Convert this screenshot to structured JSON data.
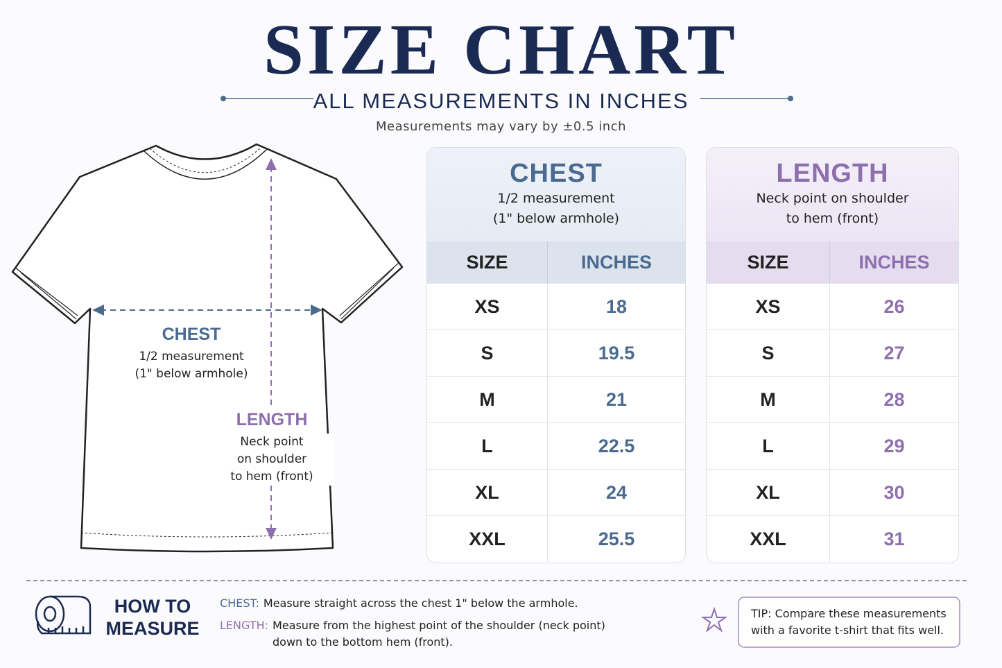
{
  "header": {
    "title": "SIZE CHART",
    "subtitle": "ALL MEASUREMENTS IN INCHES",
    "note": "Measurements may vary by ±0.5 inch"
  },
  "diagram": {
    "chest": {
      "label": "CHEST",
      "lines": [
        "1/2 measurement",
        "(1\" below armhole)"
      ]
    },
    "length": {
      "label": "LENGTH",
      "lines": [
        "Neck point",
        "on shoulder",
        "to hem (front)"
      ]
    }
  },
  "tables": [
    {
      "title": "CHEST",
      "description": [
        "1/2 measurement",
        "(1\" below armhole)"
      ],
      "columns": [
        "SIZE",
        "INCHES"
      ],
      "rows": [
        [
          "XS",
          "18"
        ],
        [
          "S",
          "19.5"
        ],
        [
          "M",
          "21"
        ],
        [
          "L",
          "22.5"
        ],
        [
          "XL",
          "24"
        ],
        [
          "XXL",
          "25.5"
        ]
      ]
    },
    {
      "title": "LENGTH",
      "description": [
        "Neck point on shoulder",
        "to hem (front)"
      ],
      "columns": [
        "SIZE",
        "INCHES"
      ],
      "rows": [
        [
          "XS",
          "26"
        ],
        [
          "S",
          "27"
        ],
        [
          "M",
          "28"
        ],
        [
          "L",
          "29"
        ],
        [
          "XL",
          "30"
        ],
        [
          "XXL",
          "31"
        ]
      ]
    }
  ],
  "footer": {
    "heading": [
      "HOW TO",
      "MEASURE"
    ],
    "instructions": [
      {
        "label": "CHEST:",
        "lines": [
          "Measure straight across the chest 1\" below the armhole."
        ]
      },
      {
        "label": "LENGTH:",
        "lines": [
          "Measure from the highest point of the shoulder (neck point)",
          "down to the bottom hem (front)."
        ]
      }
    ],
    "tip": [
      "TIP: Compare these measurements",
      "with a favorite t-shirt that fits well."
    ]
  }
}
